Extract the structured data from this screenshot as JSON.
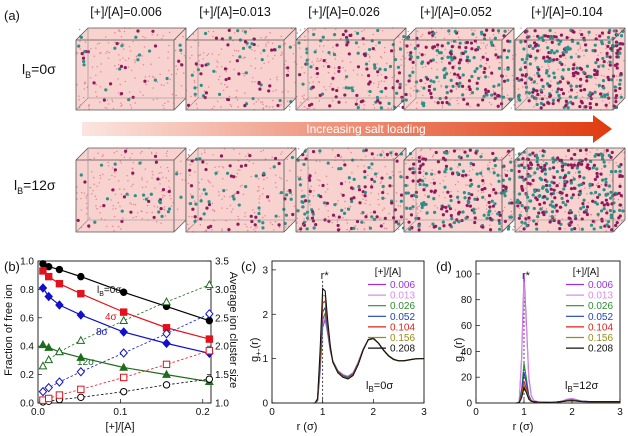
{
  "figure_label_panel_a": "(a)",
  "panel_a": {
    "col_headers": [
      "[+]/[A]=0.006",
      "[+]/[A]=0.013",
      "[+]/[A]=0.026",
      "[+]/[A]=0.052",
      "[+]/[A]=0.104"
    ],
    "row_labels": [
      "l",
      "B",
      "=0σ",
      "l",
      "B",
      "=12σ"
    ],
    "arrow_label": "Increasing salt loading",
    "colors": {
      "box_bg": "#f7d2cf",
      "polymer": "#e87f88",
      "cation": "#8e1a5e",
      "anion": "#2f8f88",
      "arrow_start": "#fbe5e0",
      "arrow_end": "#e03a0e"
    }
  },
  "chart_data": [
    {
      "id": "b",
      "type": "line",
      "panel_label": "(b)",
      "xlabel": "[+]/[A]",
      "ylabel": "Fraction of free ion",
      "y2label": "Average ion cluster size",
      "xlim": [
        0.0,
        0.21
      ],
      "ylim": [
        0.0,
        1.0
      ],
      "y2lim": [
        1.0,
        3.5
      ],
      "xticks": [
        "0.0",
        "0.1",
        "0.2"
      ],
      "yticks": [
        "0.0",
        "0.2",
        "0.4",
        "0.6",
        "0.8",
        "1.0"
      ],
      "y2ticks": [
        "1.0",
        "1.5",
        "2.0",
        "2.5",
        "3.0",
        "3.5"
      ],
      "x": [
        0.006,
        0.013,
        0.026,
        0.052,
        0.104,
        0.156,
        0.208
      ],
      "series": [
        {
          "name": "lB=0σ",
          "label_parts": [
            "l",
            "B",
            "=0σ"
          ],
          "color": "#000000",
          "marker": "circle",
          "axis": "left",
          "values": [
            0.98,
            0.96,
            0.94,
            0.89,
            0.78,
            0.68,
            0.58
          ]
        },
        {
          "name": "4σ",
          "label_parts": [
            "4σ"
          ],
          "color": "#e3111b",
          "marker": "square",
          "axis": "left",
          "values": [
            0.93,
            0.89,
            0.84,
            0.77,
            0.64,
            0.53,
            0.45
          ]
        },
        {
          "name": "8σ",
          "label_parts": [
            "8σ"
          ],
          "color": "#1111cc",
          "marker": "diamond",
          "axis": "left",
          "values": [
            0.81,
            0.75,
            0.69,
            0.62,
            0.5,
            0.42,
            0.35
          ]
        },
        {
          "name": "12σ",
          "label_parts": [
            "12σ"
          ],
          "color": "#1e6b1e",
          "marker": "triangle",
          "axis": "left",
          "values": [
            0.41,
            0.39,
            0.36,
            0.32,
            0.25,
            0.2,
            0.15
          ]
        },
        {
          "name": "lB=0σ cluster",
          "color": "#000000",
          "marker": "circle-open",
          "axis": "right",
          "dashed": true,
          "values": [
            1.02,
            1.03,
            1.06,
            1.1,
            1.2,
            1.32,
            1.42
          ]
        },
        {
          "name": "4σ cluster",
          "color": "#e3111b",
          "marker": "square-open",
          "axis": "right",
          "dashed": true,
          "values": [
            1.05,
            1.08,
            1.14,
            1.24,
            1.45,
            1.68,
            1.92
          ]
        },
        {
          "name": "8σ cluster",
          "color": "#1111cc",
          "marker": "diamond-open",
          "axis": "right",
          "dashed": true,
          "values": [
            1.2,
            1.27,
            1.37,
            1.55,
            1.88,
            2.22,
            2.57
          ]
        },
        {
          "name": "12σ cluster",
          "color": "#1e6b1e",
          "marker": "triangle-open",
          "axis": "right",
          "dashed": true,
          "values": [
            1.65,
            1.76,
            1.9,
            2.1,
            2.45,
            2.78,
            3.08
          ]
        }
      ]
    },
    {
      "id": "c",
      "type": "line",
      "panel_label": "(c)",
      "xlabel": "r (σ)",
      "ylabel_main": "g",
      "ylabel_sub": "+-",
      "ylabel_end": "(r)",
      "xlim": [
        0,
        3
      ],
      "ylim": [
        0,
        3.2
      ],
      "xticks": [
        "0",
        "1",
        "2",
        "3"
      ],
      "yticks": [
        "0",
        "1",
        "2",
        "3"
      ],
      "annotation": "r*",
      "annotation_x": 1.0,
      "legend_title": "[+]/[A]",
      "inside_label_parts": [
        "l",
        "B",
        "=0σ"
      ],
      "x": [
        0.8,
        0.85,
        0.9,
        0.95,
        1.0,
        1.05,
        1.1,
        1.15,
        1.2,
        1.3,
        1.4,
        1.5,
        1.6,
        1.7,
        1.8,
        1.9,
        2.0,
        2.1,
        2.2,
        2.3,
        2.4,
        2.5,
        2.6,
        2.7,
        2.8,
        2.9,
        3.0
      ],
      "series": [
        {
          "name": "0.006",
          "color": "#9b30e0",
          "values": [
            0,
            0,
            0.05,
            0.7,
            1.7,
            1.88,
            1.55,
            1.18,
            0.95,
            0.73,
            0.64,
            0.6,
            0.68,
            0.92,
            1.22,
            1.42,
            1.45,
            1.35,
            1.2,
            1.07,
            0.99,
            0.95,
            0.95,
            0.97,
            0.99,
            1.0,
            1.0
          ]
        },
        {
          "name": "0.013",
          "color": "#d98de8",
          "values": [
            0,
            0,
            0.05,
            0.75,
            1.78,
            1.95,
            1.58,
            1.19,
            0.95,
            0.73,
            0.63,
            0.59,
            0.67,
            0.91,
            1.22,
            1.42,
            1.45,
            1.35,
            1.2,
            1.07,
            0.99,
            0.95,
            0.95,
            0.97,
            0.99,
            1.0,
            1.0
          ]
        },
        {
          "name": "0.026",
          "color": "#2e8b2e",
          "values": [
            0,
            0,
            0.06,
            0.8,
            1.88,
            2.02,
            1.62,
            1.2,
            0.95,
            0.72,
            0.62,
            0.58,
            0.66,
            0.9,
            1.21,
            1.42,
            1.45,
            1.35,
            1.2,
            1.07,
            0.99,
            0.95,
            0.95,
            0.97,
            0.99,
            1.0,
            1.0
          ]
        },
        {
          "name": "0.052",
          "color": "#1f3fbf",
          "values": [
            0,
            0,
            0.07,
            0.9,
            2.05,
            2.15,
            1.68,
            1.22,
            0.94,
            0.71,
            0.61,
            0.57,
            0.65,
            0.89,
            1.21,
            1.43,
            1.46,
            1.35,
            1.19,
            1.06,
            0.98,
            0.95,
            0.95,
            0.97,
            0.99,
            1.0,
            1.0
          ]
        },
        {
          "name": "0.104",
          "color": "#e0201a",
          "values": [
            0,
            0,
            0.08,
            1.0,
            2.25,
            2.3,
            1.75,
            1.25,
            0.93,
            0.7,
            0.6,
            0.56,
            0.64,
            0.88,
            1.2,
            1.43,
            1.46,
            1.35,
            1.19,
            1.06,
            0.98,
            0.95,
            0.95,
            0.97,
            0.99,
            1.0,
            1.0
          ]
        },
        {
          "name": "0.156",
          "color": "#9a8a1a",
          "values": [
            0,
            0,
            0.09,
            1.1,
            2.42,
            2.42,
            1.8,
            1.27,
            0.93,
            0.69,
            0.59,
            0.55,
            0.63,
            0.87,
            1.2,
            1.43,
            1.46,
            1.35,
            1.19,
            1.06,
            0.98,
            0.95,
            0.95,
            0.97,
            0.99,
            1.0,
            1.0
          ]
        },
        {
          "name": "0.208",
          "color": "#111111",
          "values": [
            0,
            0,
            0.1,
            1.2,
            2.58,
            2.52,
            1.85,
            1.29,
            0.92,
            0.68,
            0.58,
            0.54,
            0.62,
            0.86,
            1.19,
            1.43,
            1.46,
            1.35,
            1.19,
            1.06,
            0.98,
            0.95,
            0.95,
            0.97,
            0.99,
            1.0,
            1.0
          ]
        }
      ]
    },
    {
      "id": "d",
      "type": "line",
      "panel_label": "(d)",
      "xlabel": "r (σ)",
      "ylabel_main": "g",
      "ylabel_sub": "+-",
      "ylabel_end": "(r)",
      "xlim": [
        0,
        3
      ],
      "ylim": [
        0,
        110
      ],
      "xticks": [
        "0",
        "1",
        "2",
        "3"
      ],
      "yticks": [
        "0",
        "20",
        "40",
        "60",
        "80",
        "100"
      ],
      "annotation": "r*",
      "annotation_x": 1.0,
      "legend_title": "[+]/[A]",
      "inside_label_parts": [
        "l",
        "B",
        "=12σ"
      ],
      "x": [
        0.8,
        0.85,
        0.9,
        0.95,
        1.0,
        1.05,
        1.1,
        1.15,
        1.2,
        1.3,
        1.4,
        1.5,
        1.6,
        1.7,
        1.8,
        1.9,
        2.0,
        2.1,
        2.2,
        2.4,
        2.6,
        2.8,
        3.0
      ],
      "series": [
        {
          "name": "0.006",
          "color": "#9b30e0",
          "values": [
            0,
            0,
            1,
            35,
            100,
            62,
            20,
            6,
            2,
            0.8,
            0.5,
            0.4,
            0.5,
            0.8,
            1.5,
            3.0,
            3.5,
            2.5,
            1.5,
            1.0,
            1.0,
            1.0,
            1.0
          ]
        },
        {
          "name": "0.013",
          "color": "#d98de8",
          "values": [
            0,
            0,
            1,
            32,
            94,
            58,
            18,
            5.5,
            2,
            0.8,
            0.5,
            0.4,
            0.5,
            0.8,
            1.5,
            3.0,
            3.4,
            2.4,
            1.5,
            1.0,
            1.0,
            1.0,
            1.0
          ]
        },
        {
          "name": "0.026",
          "color": "#2e8b2e",
          "values": [
            0,
            0,
            0.5,
            10,
            31,
            19,
            6,
            2,
            1,
            0.6,
            0.5,
            0.4,
            0.5,
            0.8,
            1.4,
            2.2,
            2.5,
            2.0,
            1.4,
            1.0,
            1.0,
            1.0,
            1.0
          ]
        },
        {
          "name": "0.052",
          "color": "#1f3fbf",
          "values": [
            0,
            0,
            0.4,
            8,
            24,
            15,
            5,
            1.8,
            1,
            0.6,
            0.5,
            0.4,
            0.5,
            0.8,
            1.3,
            2.0,
            2.2,
            1.8,
            1.3,
            1.0,
            1.0,
            1.0,
            1.0
          ]
        },
        {
          "name": "0.104",
          "color": "#e0201a",
          "values": [
            0,
            0,
            0.3,
            6,
            17,
            11,
            4,
            1.5,
            1,
            0.6,
            0.5,
            0.4,
            0.5,
            0.8,
            1.2,
            1.8,
            2.0,
            1.6,
            1.2,
            1.0,
            1.0,
            1.0,
            1.0
          ]
        },
        {
          "name": "0.156",
          "color": "#9a8a1a",
          "values": [
            0,
            0,
            0.3,
            5,
            14,
            9,
            3.5,
            1.4,
            1,
            0.6,
            0.5,
            0.4,
            0.5,
            0.8,
            1.2,
            1.7,
            1.9,
            1.5,
            1.2,
            1.0,
            1.0,
            1.0,
            1.0
          ]
        },
        {
          "name": "0.208",
          "color": "#111111",
          "values": [
            0,
            0,
            0.3,
            4,
            12,
            8,
            3,
            1.3,
            1,
            0.6,
            0.5,
            0.4,
            0.5,
            0.8,
            1.1,
            1.6,
            1.8,
            1.5,
            1.1,
            1.0,
            1.0,
            1.0,
            1.0
          ]
        }
      ]
    }
  ]
}
